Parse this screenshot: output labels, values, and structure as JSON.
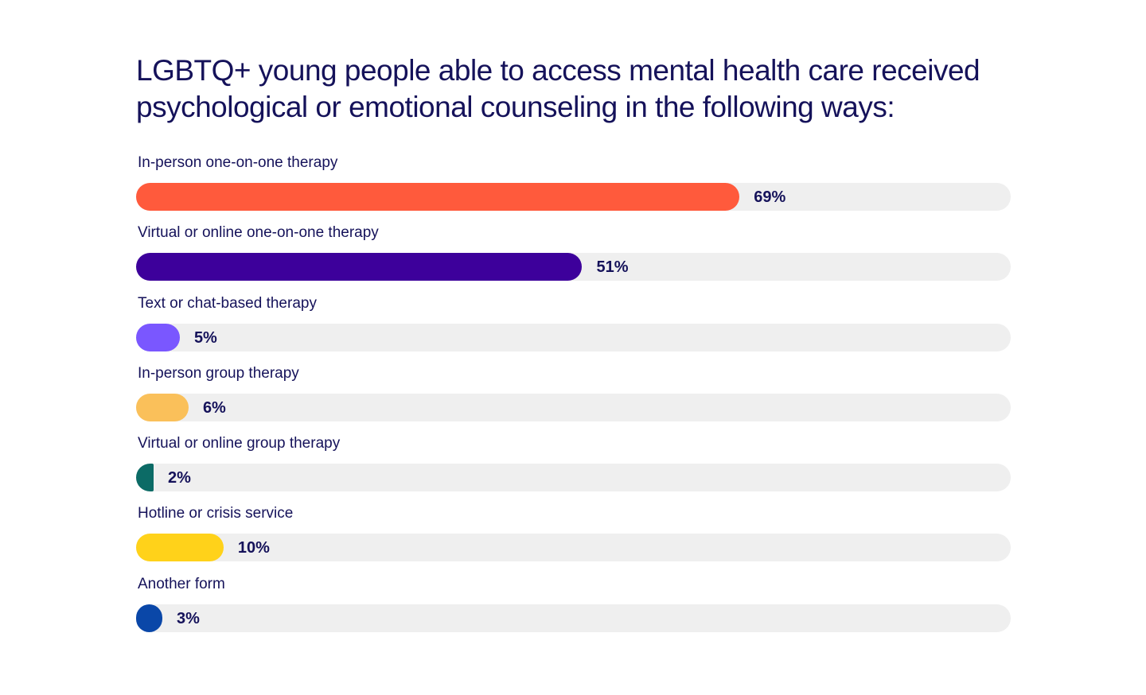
{
  "chart_data": {
    "type": "bar",
    "orientation": "horizontal",
    "title": "LGBTQ+ young people able to access mental health care received psychological or emotional counseling in the following ways:",
    "xlim": [
      0,
      100
    ],
    "grid": false,
    "bars": [
      {
        "label": "In-person one-on-one therapy",
        "value": 69,
        "display": "69%",
        "color": "#ff5a3c"
      },
      {
        "label": "Virtual or online one-on-one therapy",
        "value": 51,
        "display": "51%",
        "color": "#3d009b"
      },
      {
        "label": "Text or chat-based therapy",
        "value": 5,
        "display": "5%",
        "color": "#7a57ff"
      },
      {
        "label": "In-person group therapy",
        "value": 6,
        "display": "6%",
        "color": "#fac05a"
      },
      {
        "label": "Virtual or online group therapy",
        "value": 2,
        "display": "2%",
        "color": "#0c6b66"
      },
      {
        "label": "Hotline or crisis service",
        "value": 10,
        "display": "10%",
        "color": "#ffd21a"
      },
      {
        "label": "Another form",
        "value": 3,
        "display": "3%",
        "color": "#0a47a8"
      }
    ],
    "track_color": "#efefef",
    "text_color": "#15125a"
  }
}
